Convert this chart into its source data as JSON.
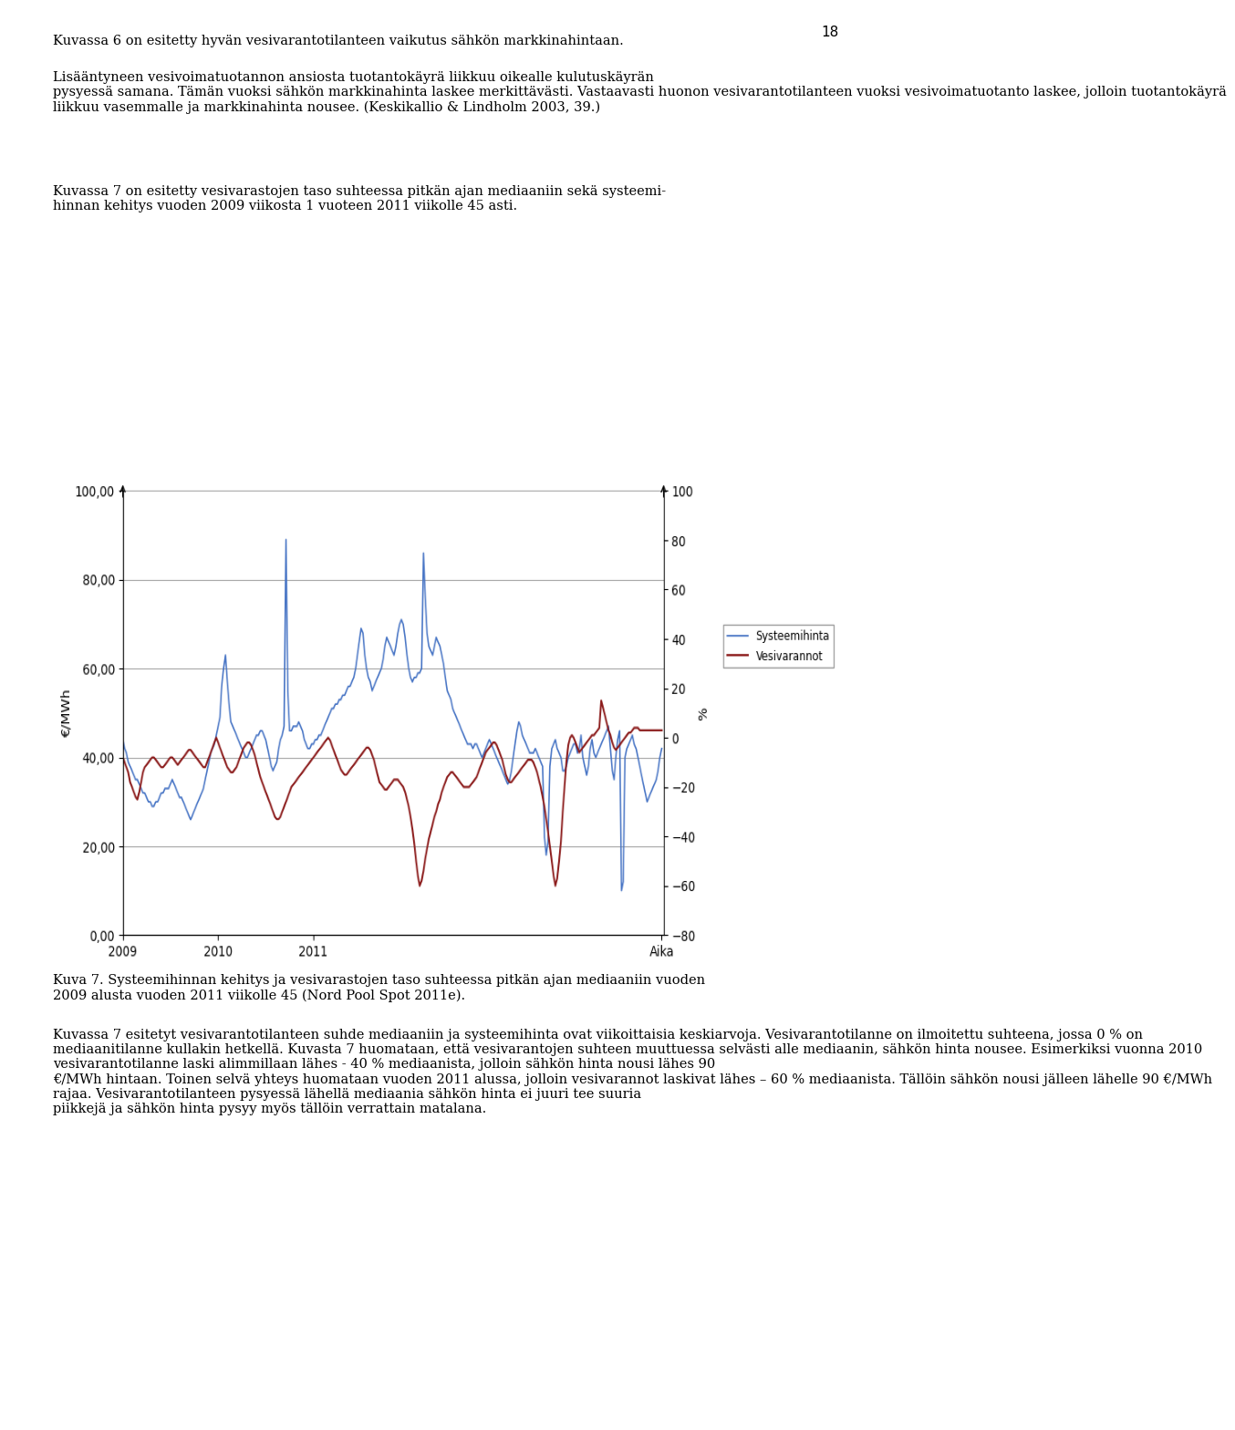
{
  "title": "",
  "ylabel_left": "€/MWh",
  "ylabel_right": "%",
  "xlabel": "Aika",
  "legend_labels": [
    "Systeemihinta",
    "Vesivarannot"
  ],
  "line_colors": [
    "#4472C4",
    "#8B1A1A"
  ],
  "ylim_left": [
    0,
    100
  ],
  "ylim_right": [
    -80,
    100
  ],
  "yticks_left": [
    0.0,
    20.0,
    40.0,
    60.0,
    80.0,
    100.0
  ],
  "yticks_right": [
    -80,
    -60,
    -40,
    -20,
    0,
    20,
    40,
    60,
    80,
    100
  ],
  "grid_color": "#AAAAAA",
  "background_color": "#FFFFFF",
  "xtick_labels": [
    "2009",
    "2010",
    "2011",
    "Aika"
  ],
  "systeemihinta": [
    44,
    42,
    41,
    39,
    38,
    37,
    36,
    35,
    35,
    34,
    33,
    32,
    32,
    31,
    30,
    30,
    29,
    29,
    30,
    30,
    31,
    32,
    32,
    33,
    33,
    33,
    34,
    35,
    34,
    33,
    32,
    31,
    31,
    30,
    29,
    28,
    27,
    26,
    27,
    28,
    29,
    30,
    31,
    32,
    33,
    35,
    37,
    39,
    41,
    42,
    43,
    45,
    47,
    49,
    56,
    60,
    63,
    57,
    52,
    48,
    47,
    46,
    45,
    44,
    43,
    42,
    41,
    40,
    40,
    41,
    42,
    43,
    44,
    45,
    45,
    46,
    46,
    45,
    44,
    42,
    40,
    38,
    37,
    38,
    39,
    42,
    44,
    45,
    47,
    89,
    55,
    46,
    46,
    47,
    47,
    47,
    48,
    47,
    46,
    44,
    43,
    42,
    42,
    43,
    43,
    44,
    44,
    45,
    45,
    46,
    47,
    48,
    49,
    50,
    51,
    51,
    52,
    52,
    53,
    53,
    54,
    54,
    55,
    56,
    56,
    57,
    58,
    60,
    63,
    66,
    69,
    68,
    63,
    60,
    58,
    57,
    55,
    56,
    57,
    58,
    59,
    60,
    62,
    65,
    67,
    66,
    65,
    64,
    63,
    65,
    68,
    70,
    71,
    70,
    67,
    63,
    60,
    58,
    57,
    58,
    58,
    59,
    59,
    60,
    86,
    76,
    68,
    65,
    64,
    63,
    65,
    67,
    66,
    65,
    63,
    61,
    58,
    55,
    54,
    53,
    51,
    50,
    49,
    48,
    47,
    46,
    45,
    44,
    43,
    43,
    43,
    42,
    43,
    43,
    42,
    41,
    40,
    41,
    42,
    43,
    44,
    43,
    42,
    41,
    40,
    39,
    38,
    37,
    36,
    35,
    34,
    35,
    37,
    40,
    43,
    46,
    48,
    47,
    45,
    44,
    43,
    42,
    41,
    41,
    41,
    42,
    41,
    40,
    39,
    38,
    22,
    18,
    21,
    38,
    42,
    43,
    44,
    42,
    41,
    40,
    37,
    37,
    38,
    40,
    41,
    42,
    43,
    43,
    41,
    42,
    45,
    40,
    38,
    36,
    38,
    42,
    44,
    41,
    40,
    41,
    42,
    43,
    44,
    45,
    46,
    47,
    42,
    37,
    35,
    40,
    44,
    46,
    10,
    12,
    40,
    42,
    43,
    44,
    45,
    43,
    42,
    40,
    38,
    36,
    34,
    32,
    30,
    31,
    32,
    33,
    34,
    35,
    37,
    40,
    42
  ],
  "vesivarannot": [
    -8,
    -10,
    -12,
    -14,
    -18,
    -20,
    -22,
    -24,
    -25,
    -22,
    -18,
    -14,
    -12,
    -11,
    -10,
    -9,
    -8,
    -8,
    -9,
    -10,
    -11,
    -12,
    -12,
    -11,
    -10,
    -9,
    -8,
    -8,
    -9,
    -10,
    -11,
    -10,
    -9,
    -8,
    -7,
    -6,
    -5,
    -5,
    -6,
    -7,
    -8,
    -9,
    -10,
    -11,
    -12,
    -12,
    -10,
    -8,
    -6,
    -4,
    -2,
    0,
    -2,
    -4,
    -6,
    -8,
    -10,
    -12,
    -13,
    -14,
    -14,
    -13,
    -12,
    -10,
    -8,
    -6,
    -4,
    -3,
    -2,
    -2,
    -3,
    -5,
    -7,
    -10,
    -13,
    -16,
    -18,
    -20,
    -22,
    -24,
    -26,
    -28,
    -30,
    -32,
    -33,
    -33,
    -32,
    -30,
    -28,
    -26,
    -24,
    -22,
    -20,
    -19,
    -18,
    -17,
    -16,
    -15,
    -14,
    -13,
    -12,
    -11,
    -10,
    -9,
    -8,
    -7,
    -6,
    -5,
    -4,
    -3,
    -2,
    -1,
    0,
    -1,
    -3,
    -5,
    -7,
    -9,
    -11,
    -13,
    -14,
    -15,
    -15,
    -14,
    -13,
    -12,
    -11,
    -10,
    -9,
    -8,
    -7,
    -6,
    -5,
    -4,
    -4,
    -5,
    -7,
    -9,
    -12,
    -15,
    -18,
    -19,
    -20,
    -21,
    -21,
    -20,
    -19,
    -18,
    -17,
    -17,
    -17,
    -18,
    -19,
    -20,
    -22,
    -25,
    -28,
    -32,
    -37,
    -43,
    -50,
    -56,
    -60,
    -58,
    -54,
    -49,
    -45,
    -41,
    -38,
    -35,
    -32,
    -30,
    -27,
    -25,
    -22,
    -20,
    -18,
    -16,
    -15,
    -14,
    -14,
    -15,
    -16,
    -17,
    -18,
    -19,
    -20,
    -20,
    -20,
    -20,
    -19,
    -18,
    -17,
    -16,
    -14,
    -12,
    -10,
    -8,
    -6,
    -5,
    -4,
    -3,
    -2,
    -2,
    -3,
    -5,
    -7,
    -9,
    -12,
    -15,
    -17,
    -18,
    -18,
    -17,
    -16,
    -15,
    -14,
    -13,
    -12,
    -11,
    -10,
    -9,
    -9,
    -9,
    -10,
    -12,
    -14,
    -17,
    -20,
    -24,
    -28,
    -33,
    -38,
    -44,
    -50,
    -56,
    -60,
    -57,
    -50,
    -42,
    -30,
    -20,
    -10,
    -3,
    0,
    1,
    0,
    -2,
    -4,
    -6,
    -5,
    -4,
    -3,
    -2,
    -1,
    0,
    1,
    1,
    2,
    3,
    4,
    15,
    12,
    9,
    6,
    3,
    1,
    -2,
    -4,
    -5,
    -4,
    -3,
    -2,
    -1,
    0,
    1,
    2,
    2,
    3,
    4,
    4,
    4,
    3,
    3,
    3,
    3,
    3,
    3,
    3,
    3,
    3,
    3,
    3,
    3,
    3
  ]
}
